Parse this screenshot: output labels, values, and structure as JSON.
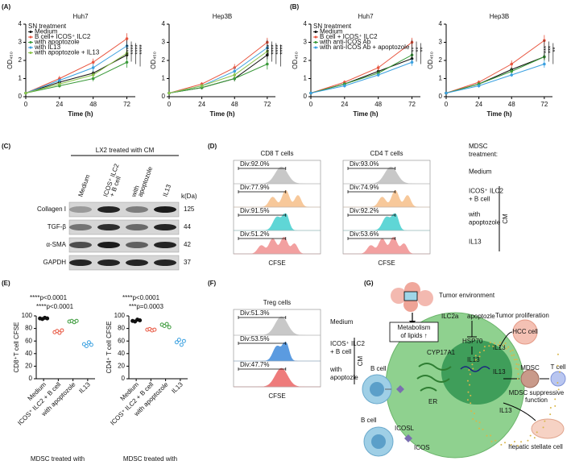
{
  "panel_labels": [
    "(A)",
    "(B)",
    "(C)",
    "(D)",
    "(E)",
    "(F)",
    "(G)"
  ],
  "chart_data": [
    {
      "type": "line",
      "title": "Huh7",
      "legend_title": "SN treatment",
      "xlabel": "Time (h)",
      "ylabel": "OD₄₅₀",
      "x": [
        0,
        24,
        48,
        72
      ],
      "xlim": [
        0,
        78
      ],
      "xticks": [
        0,
        24,
        48,
        72
      ],
      "ylim": [
        0,
        4
      ],
      "yticks": [
        0,
        1,
        2,
        3,
        4
      ],
      "series": [
        {
          "name": "Medium",
          "color": "#111111",
          "values": [
            0.2,
            0.8,
            1.3,
            2.3
          ],
          "errors": [
            0.05,
            0.1,
            0.15,
            0.2
          ]
        },
        {
          "name": "B cell+ ICOS⁺ ILC2",
          "color": "#e8553f",
          "values": [
            0.2,
            1.0,
            1.9,
            3.2
          ],
          "errors": [
            0.05,
            0.15,
            0.2,
            0.3
          ]
        },
        {
          "name": "with apoptozole",
          "color": "#3a9a3a",
          "values": [
            0.2,
            0.6,
            1.0,
            1.9
          ],
          "errors": [
            0.05,
            0.1,
            0.15,
            0.3
          ]
        },
        {
          "name": "with IL13",
          "color": "#3aa0e0",
          "values": [
            0.2,
            0.9,
            1.6,
            2.8
          ],
          "errors": [
            0.05,
            0.1,
            0.2,
            0.25
          ]
        },
        {
          "name": "with apoptozole + IL13",
          "color": "#8bc34a",
          "values": [
            0.2,
            0.7,
            1.2,
            2.4
          ],
          "errors": [
            0.05,
            0.1,
            0.15,
            0.25
          ]
        }
      ],
      "significance": [
        "****",
        "****",
        "****",
        "****"
      ]
    },
    {
      "type": "line",
      "title": "Hep3B",
      "xlabel": "Time (h)",
      "ylabel": "OD₄₅₀",
      "x": [
        0,
        24,
        48,
        72
      ],
      "xlim": [
        0,
        78
      ],
      "xticks": [
        0,
        24,
        48,
        72
      ],
      "ylim": [
        0,
        4
      ],
      "yticks": [
        0,
        1,
        2,
        3,
        4
      ],
      "series": [
        {
          "color": "#111111",
          "values": [
            0.2,
            0.5,
            1.0,
            2.3
          ],
          "errors": [
            0.05,
            0.1,
            0.15,
            0.2
          ]
        },
        {
          "color": "#e8553f",
          "values": [
            0.2,
            0.7,
            1.6,
            3.0
          ],
          "errors": [
            0.05,
            0.1,
            0.2,
            0.25
          ]
        },
        {
          "color": "#3a9a3a",
          "values": [
            0.2,
            0.5,
            1.0,
            1.8
          ],
          "errors": [
            0.05,
            0.1,
            0.15,
            0.3
          ]
        },
        {
          "color": "#3aa0e0",
          "values": [
            0.2,
            0.6,
            1.4,
            2.7
          ],
          "errors": [
            0.05,
            0.1,
            0.2,
            0.2
          ]
        },
        {
          "color": "#8bc34a",
          "values": [
            0.2,
            0.6,
            1.2,
            2.5
          ],
          "errors": [
            0.05,
            0.1,
            0.15,
            0.2
          ]
        }
      ],
      "significance": [
        "****",
        "****",
        "****",
        "****"
      ]
    },
    {
      "type": "line",
      "title": "Huh7",
      "legend_title": "SN treatment",
      "xlabel": "Time (h)",
      "ylabel": "OD₄₅₀",
      "x": [
        0,
        24,
        48,
        72
      ],
      "xlim": [
        0,
        78
      ],
      "xticks": [
        0,
        24,
        48,
        72
      ],
      "ylim": [
        0,
        4
      ],
      "yticks": [
        0,
        1,
        2,
        3,
        4
      ],
      "series": [
        {
          "name": "Medium",
          "color": "#111111",
          "values": [
            0.2,
            0.7,
            1.4,
            2.1
          ],
          "errors": [
            0.05,
            0.1,
            0.15,
            0.15
          ]
        },
        {
          "name": "B cell + ICOS⁺ ILC2",
          "color": "#e8553f",
          "values": [
            0.2,
            0.8,
            1.6,
            3.0
          ],
          "errors": [
            0.05,
            0.1,
            0.15,
            0.25
          ]
        },
        {
          "name": "with anti-ICOS Ab",
          "color": "#3a9a3a",
          "values": [
            0.2,
            0.7,
            1.3,
            2.3
          ],
          "errors": [
            0.05,
            0.1,
            0.15,
            0.2
          ]
        },
        {
          "name": "with anti-ICOS Ab + apoptozole",
          "color": "#3aa0e0",
          "values": [
            0.2,
            0.6,
            1.2,
            1.9
          ],
          "errors": [
            0.05,
            0.1,
            0.1,
            0.2
          ]
        }
      ],
      "significance": [
        "**",
        "**",
        "**"
      ]
    },
    {
      "type": "line",
      "title": "Hep3B",
      "xlabel": "Time (h)",
      "ylabel": "OD₄₅₀",
      "x": [
        0,
        24,
        48,
        72
      ],
      "xlim": [
        0,
        78
      ],
      "xticks": [
        0,
        24,
        48,
        72
      ],
      "ylim": [
        0,
        4
      ],
      "yticks": [
        0,
        1,
        2,
        3,
        4
      ],
      "series": [
        {
          "color": "#111111",
          "values": [
            0.2,
            0.7,
            1.5,
            2.2
          ],
          "errors": [
            0.05,
            0.1,
            0.15,
            0.2
          ]
        },
        {
          "color": "#e8553f",
          "values": [
            0.2,
            0.8,
            1.8,
            3.1
          ],
          "errors": [
            0.05,
            0.1,
            0.2,
            0.3
          ]
        },
        {
          "color": "#3a9a3a",
          "values": [
            0.2,
            0.7,
            1.4,
            2.2
          ],
          "errors": [
            0.05,
            0.1,
            0.15,
            0.2
          ]
        },
        {
          "color": "#3aa0e0",
          "values": [
            0.2,
            0.6,
            1.2,
            1.8
          ],
          "errors": [
            0.05,
            0.1,
            0.1,
            0.2
          ]
        }
      ],
      "significance": [
        "***",
        "***",
        "**"
      ]
    },
    {
      "type": "strip",
      "ylabel": "CD8⁺T cell CFSE",
      "xlabel": "MDSC treated with",
      "ylim": [
        0,
        100
      ],
      "yticks": [
        0,
        20,
        40,
        60,
        80,
        100
      ],
      "groups": [
        {
          "name": "Medium",
          "color": "#111111",
          "values": [
            96,
            95,
            97,
            96
          ]
        },
        {
          "name": "ICOS⁺ ILC2 + B cell",
          "color": "#e8553f",
          "values": [
            74,
            76,
            73,
            77
          ]
        },
        {
          "name": "with apoptozole",
          "color": "#3a9a3a",
          "values": [
            91,
            92,
            90,
            92
          ]
        },
        {
          "name": "IL13",
          "color": "#3aa0e0",
          "values": [
            55,
            52,
            58,
            54
          ]
        }
      ],
      "annotations": [
        "****p<0.0001",
        "****p<0.0001"
      ]
    },
    {
      "type": "strip",
      "ylabel": "CD4⁺ T cell CFSE",
      "xlabel": "MDSC treated with",
      "ylim": [
        0,
        100
      ],
      "yticks": [
        0,
        20,
        40,
        60,
        80,
        100
      ],
      "groups": [
        {
          "name": "Medium",
          "color": "#111111",
          "values": [
            92,
            91,
            94,
            93
          ]
        },
        {
          "name": "ICOS⁺ ILC2 + B cell",
          "color": "#e8553f",
          "values": [
            78,
            79,
            77,
            78
          ]
        },
        {
          "name": "with apoptozole",
          "color": "#3a9a3a",
          "values": [
            86,
            84,
            87,
            82
          ]
        },
        {
          "name": "IL13",
          "color": "#3aa0e0",
          "values": [
            58,
            62,
            54,
            60
          ]
        }
      ],
      "annotations": [
        "****p<0.0001",
        "***p=0.0003"
      ]
    }
  ],
  "blot": {
    "title": "LX2 treated with CM",
    "unit": "k(Da)",
    "columns": [
      [
        "Medium"
      ],
      [
        "ICOS⁺ ILC2",
        "+ B cell"
      ],
      [
        "with",
        "apoptozole"
      ],
      [
        "IL13"
      ]
    ],
    "rows": [
      {
        "name": "Collagen I",
        "kda": "125"
      },
      {
        "name": "TGF-β",
        "kda": "44"
      },
      {
        "name": "α-SMA",
        "kda": "42"
      },
      {
        "name": "GAPDH",
        "kda": "37"
      }
    ]
  },
  "flow_d": {
    "header": [
      "MDSC",
      "treatment:"
    ],
    "group_label": "CM",
    "xlabel": "CFSE",
    "columns": [
      {
        "title": "CD8 T cells",
        "gates": [
          "Div:92.0%",
          "Div:77.9%",
          "Div:91.5%",
          "Div:51.2%"
        ]
      },
      {
        "title": "CD4 T cells",
        "gates": [
          "Div:93.0%",
          "Div:74.9%",
          "Div:92.2%",
          "Div:53.6%"
        ]
      }
    ],
    "rows": [
      [
        "Medium"
      ],
      [
        "ICOS⁺ ILC2",
        "+ B cell"
      ],
      [
        "with",
        "apoptozole"
      ],
      [
        "IL13"
      ]
    ],
    "row_colors": [
      "#c8c8c8",
      "#f7c89a",
      "#5fd6d6",
      "#f2a0a0"
    ]
  },
  "flow_f": {
    "group_label": "CM",
    "xlabel": "CFSE",
    "columns": [
      {
        "title": "Treg cells",
        "gates": [
          "Div:51.3%",
          "Div:53.5%",
          "Div:47.7%"
        ]
      }
    ],
    "rows": [
      [
        "Medium"
      ],
      [
        "ICOS⁺ ILC2",
        "+ B cell"
      ],
      [
        "with",
        "apoptozle"
      ]
    ],
    "row_colors": [
      "#c8c8c8",
      "#5b9be0",
      "#ee7b7b"
    ]
  },
  "diagram": {
    "tumor_environment": "Tumor environment",
    "tumor_proliferation": "Tumor proliferation",
    "hcc_cell": "HCC cell",
    "il13": [
      "IL13",
      "IL13",
      "IL13",
      "IL13"
    ],
    "apoptozle": "apoptozle",
    "ilc2a": "ILC2a",
    "metabolism": [
      "Metabolism",
      "of lipids ↑"
    ],
    "hsp70": "HSP70",
    "cyp17a1": "CYP17A1",
    "er": "ER",
    "b_cell": [
      "B cell",
      "B cell"
    ],
    "icosl": "ICOSL",
    "icos": "ICOS",
    "mdsc": "MDSC",
    "t_cell": "T cell",
    "mdsc_function": [
      "MDSC suppressive",
      "function"
    ],
    "hepatic_stellate_cell": "hepatic stellate cell"
  }
}
